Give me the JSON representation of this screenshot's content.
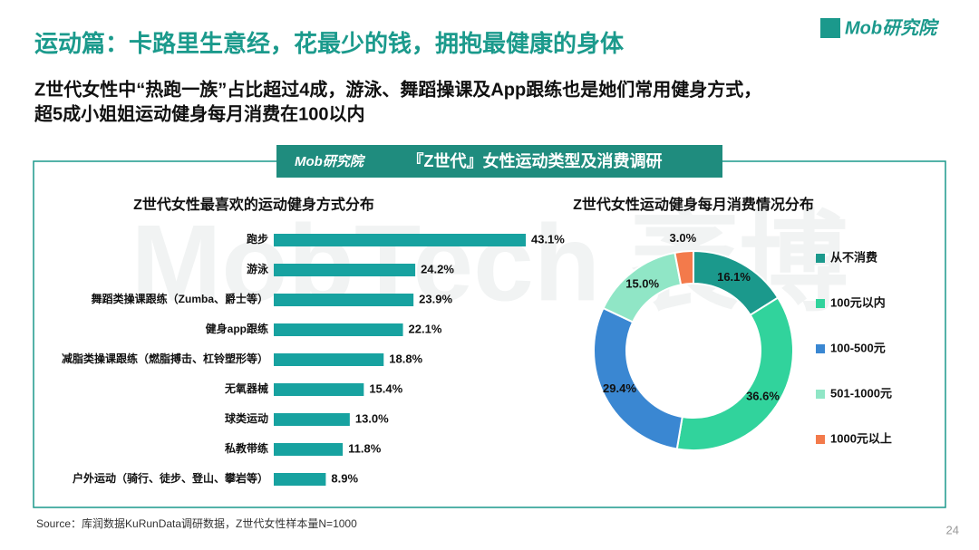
{
  "logo": "Mob研究院",
  "header": {
    "title": "运动篇：卡路里生意经，花最少的钱，拥抱最健康的身体",
    "subtitle_lines": [
      "Z世代女性中“热跑一族”占比超过4成，游泳、舞蹈操课及App跟练也是她们常用健身方式，",
      "超5成小姐姐运动健身每月消费在100以内"
    ]
  },
  "banner": {
    "logo": "Mob研究院",
    "title": "『Z世代』女性运动类型及消费调研"
  },
  "watermark": "MobTech 袤博",
  "chart_data": [
    {
      "type": "bar",
      "orientation": "horizontal",
      "title": "Z世代女性最喜欢的运动健身方式分布",
      "color": "#17a2a0",
      "categories": [
        "跑步",
        "游泳",
        "舞蹈类操课跟练（Zumba、爵士等）",
        "健身app跟练",
        "减脂类操课跟练（燃脂搏击、杠铃塑形等）",
        "无氧器械",
        "球类运动",
        "私教带练",
        "户外运动（骑行、徒步、登山、攀岩等）"
      ],
      "values": [
        43.1,
        24.2,
        23.9,
        22.1,
        18.8,
        15.4,
        13.0,
        11.8,
        8.9
      ],
      "value_labels": [
        "43.1%",
        "24.2%",
        "23.9%",
        "22.1%",
        "18.8%",
        "15.4%",
        "13.0%",
        "11.8%",
        "8.9%"
      ]
    },
    {
      "type": "donut",
      "title": "Z世代女性运动健身每月消费情况分布",
      "categories": [
        "从不消费",
        "100元以内",
        "100-500元",
        "501-1000元",
        "1000元以上"
      ],
      "values": [
        16.1,
        36.6,
        29.4,
        15.0,
        3.0
      ],
      "value_labels": [
        "16.1%",
        "36.6%",
        "29.4%",
        "15.0%",
        "3.0%"
      ],
      "colors": [
        "#1b998c",
        "#31d39c",
        "#3a87d2",
        "#90e6c6",
        "#f37a4b"
      ],
      "legend": "right"
    }
  ],
  "source": "Source：库润数据KuRunData调研数据，Z世代女性样本量N=1000",
  "page_number": "24"
}
